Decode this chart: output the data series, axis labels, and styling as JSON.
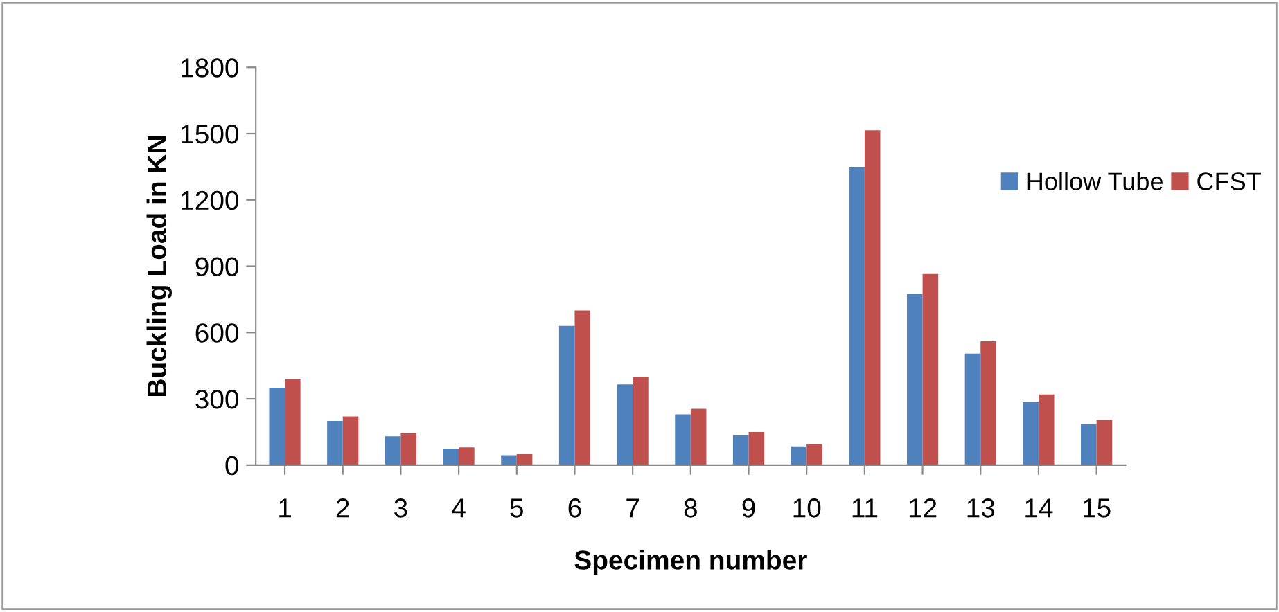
{
  "chart_data": {
    "type": "bar",
    "xlabel": "Specimen number",
    "ylabel": "Buckling Load in KN",
    "categories": [
      "1",
      "2",
      "3",
      "4",
      "5",
      "6",
      "7",
      "8",
      "9",
      "10",
      "11",
      "12",
      "13",
      "14",
      "15"
    ],
    "series": [
      {
        "name": "Hollow Tube",
        "color": "#4f81bd",
        "values": [
          350,
          200,
          130,
          75,
          45,
          630,
          365,
          230,
          135,
          85,
          1350,
          775,
          505,
          285,
          185
        ]
      },
      {
        "name": "CFST",
        "color": "#c0504d",
        "values": [
          390,
          220,
          145,
          80,
          50,
          700,
          400,
          255,
          150,
          95,
          1515,
          865,
          560,
          320,
          205
        ]
      }
    ],
    "ylim": [
      0,
      1800
    ],
    "yticks": [
      0,
      300,
      600,
      900,
      1200,
      1500,
      1800
    ],
    "grid": false,
    "legend": "right"
  }
}
